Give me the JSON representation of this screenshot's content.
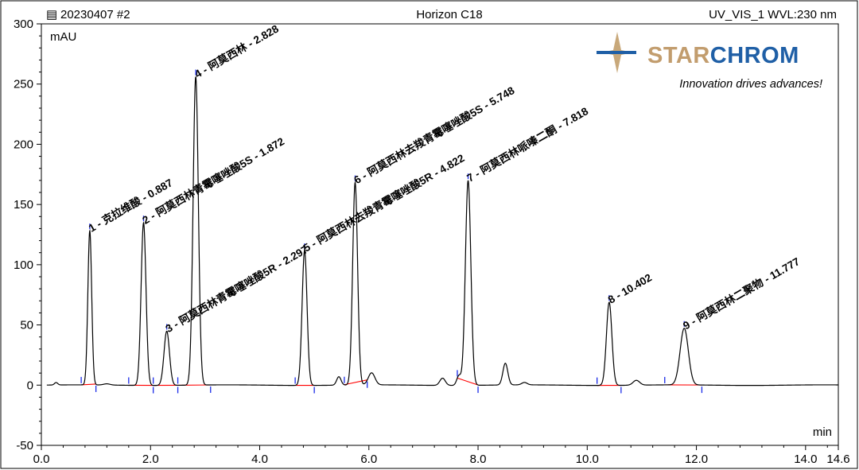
{
  "header": {
    "sample": "20230407 #2",
    "column": "Horizon C18",
    "channel": "UV_VIS_1 WVL:230 nm"
  },
  "logo": {
    "name_part1": "STAR",
    "name_part2": "CHROM",
    "tagline": "Innovation drives advances!",
    "colors": {
      "star": "#C8A87A",
      "name_part1": "#C29D6E",
      "name_part2": "#1F5FA6",
      "accent": "#1F5FA6"
    }
  },
  "colors": {
    "trace": "#000000",
    "baseline": "#FF0000",
    "marker": "#1A2BE8"
  },
  "chart_data": {
    "type": "line",
    "xlabel": "min",
    "ylabel": "mAU",
    "xlim": [
      0.0,
      14.6
    ],
    "ylim": [
      -50,
      300
    ],
    "x_ticks": [
      "0.0",
      "2.0",
      "4.0",
      "6.0",
      "8.0",
      "10.0",
      "12.0",
      "14.0",
      "14.6"
    ],
    "y_ticks": [
      "-50",
      "0",
      "50",
      "100",
      "150",
      "200",
      "250",
      "300"
    ],
    "peaks": [
      {
        "rt": 0.887,
        "height": 128,
        "width": 0.035,
        "label": "1 - 克拉维酸 - 0.887"
      },
      {
        "rt": 1.872,
        "height": 135,
        "width": 0.045,
        "label": "2 - 阿莫西林青霉噻唑酸5S - 1.872"
      },
      {
        "rt": 2.297,
        "height": 45,
        "width": 0.05,
        "label": "3 - 阿莫西林青霉噻唑酸5R - 2.297"
      },
      {
        "rt": 2.828,
        "height": 256,
        "width": 0.048,
        "label": "4 - 阿莫西林 - 2.828"
      },
      {
        "rt": 4.822,
        "height": 112,
        "width": 0.045,
        "label": "5 - 阿莫西林去羧青霉噻唑酸5R - 4.822"
      },
      {
        "rt": 5.748,
        "height": 168,
        "width": 0.045,
        "label": "6 - 阿莫西林去羧青霉噻唑酸5S - 5.748"
      },
      {
        "rt": 7.818,
        "height": 170,
        "width": 0.05,
        "label": "7 - 阿莫西林哌嗪二酮 - 7.818"
      },
      {
        "rt": 10.402,
        "height": 69,
        "width": 0.05,
        "label": "8 - 10.402"
      },
      {
        "rt": 11.777,
        "height": 47,
        "width": 0.075,
        "label": "9 - 阿莫西林二聚物 - 11.777"
      }
    ],
    "minor_peaks": [
      {
        "rt": 0.27,
        "height": 2,
        "width": 0.03
      },
      {
        "rt": 1.2,
        "height": 1,
        "width": 0.06
      },
      {
        "rt": 5.45,
        "height": 7,
        "width": 0.04
      },
      {
        "rt": 6.05,
        "height": 10,
        "width": 0.06
      },
      {
        "rt": 7.35,
        "height": 6,
        "width": 0.05
      },
      {
        "rt": 7.65,
        "height": 8,
        "width": 0.04
      },
      {
        "rt": 8.5,
        "height": 18,
        "width": 0.045
      },
      {
        "rt": 8.85,
        "height": 2,
        "width": 0.05
      },
      {
        "rt": 10.9,
        "height": 4,
        "width": 0.06
      }
    ],
    "integration_segments": [
      [
        0.73,
        1.0
      ],
      [
        1.6,
        2.05
      ],
      [
        2.05,
        2.5
      ],
      [
        2.5,
        3.1
      ],
      [
        4.65,
        5.0
      ],
      [
        5.55,
        5.97
      ],
      [
        7.62,
        8.0
      ],
      [
        10.18,
        10.62
      ],
      [
        11.42,
        12.1
      ]
    ]
  }
}
